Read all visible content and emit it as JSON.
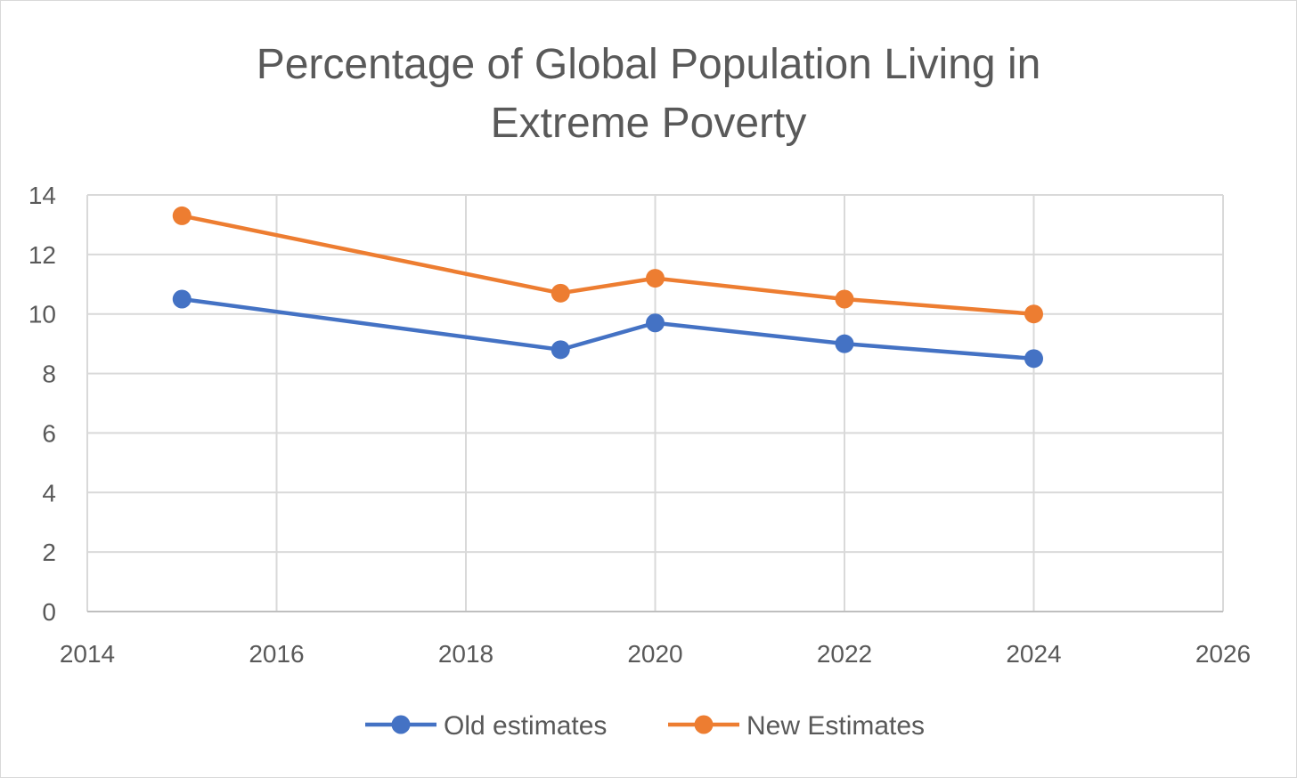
{
  "chart_data": {
    "type": "line",
    "title_line1": "Percentage of Global Population Living in",
    "title_line2": "Extreme Poverty",
    "xlabel": "",
    "ylabel": "",
    "xlim": [
      2014,
      2026
    ],
    "ylim": [
      0,
      14
    ],
    "xticks": [
      2014,
      2016,
      2018,
      2020,
      2022,
      2024,
      2026
    ],
    "yticks": [
      0,
      2,
      4,
      6,
      8,
      10,
      12,
      14
    ],
    "grid": true,
    "legend_position": "bottom",
    "series": [
      {
        "name": "Old estimates",
        "color": "#4472C4",
        "x": [
          2015,
          2019,
          2020,
          2022,
          2024
        ],
        "y": [
          10.5,
          8.8,
          9.7,
          9.0,
          8.5
        ]
      },
      {
        "name": "New Estimates",
        "color": "#ED7D31",
        "x": [
          2015,
          2019,
          2020,
          2022,
          2024
        ],
        "y": [
          13.3,
          10.7,
          11.2,
          10.5,
          10.0
        ]
      }
    ]
  }
}
